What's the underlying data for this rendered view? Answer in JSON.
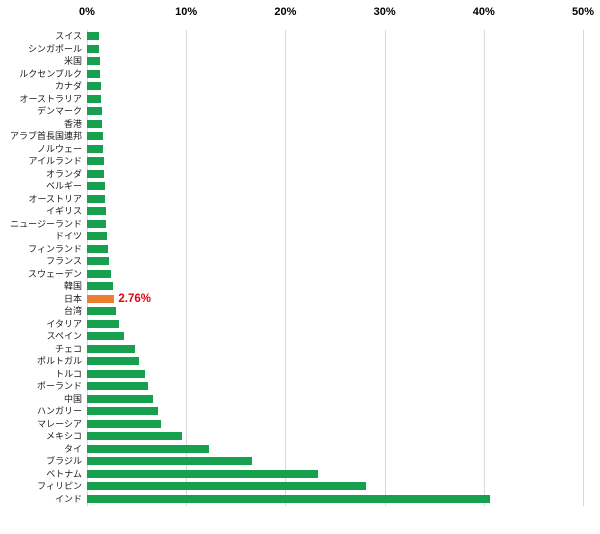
{
  "chart_data": {
    "type": "bar",
    "orientation": "horizontal",
    "title": "",
    "xlabel": "",
    "ylabel": "",
    "x_axis": {
      "min": 0,
      "max": 50,
      "ticks": [
        "0%",
        "10%",
        "20%",
        "30%",
        "40%",
        "50%"
      ],
      "tick_values": [
        0,
        10,
        20,
        30,
        40,
        50
      ]
    },
    "grid": true,
    "legend": false,
    "bar_color": "#17a14e",
    "grid_color": "#d9d9d9",
    "categories": [
      "スイス",
      "シンガポール",
      "米国",
      "ルクセンブルク",
      "カナダ",
      "オーストラリア",
      "デンマーク",
      "香港",
      "アラブ首長国連邦",
      "ノルウェー",
      "アイルランド",
      "オランダ",
      "ベルギー",
      "オーストリア",
      "イギリス",
      "ニュージーランド",
      "ドイツ",
      "フィンランド",
      "フランス",
      "スウェーデン",
      "韓国",
      "日本",
      "台湾",
      "イタリア",
      "スペイン",
      "チェコ",
      "ポルトガル",
      "トルコ",
      "ポーランド",
      "中国",
      "ハンガリー",
      "マレーシア",
      "メキシコ",
      "タイ",
      "ブラジル",
      "ベトナム",
      "フィリピン",
      "インド"
    ],
    "values": [
      1.2,
      1.2,
      1.3,
      1.3,
      1.4,
      1.4,
      1.5,
      1.5,
      1.6,
      1.6,
      1.7,
      1.7,
      1.8,
      1.8,
      1.9,
      1.9,
      2.0,
      2.1,
      2.2,
      2.4,
      2.6,
      2.76,
      2.9,
      3.2,
      3.7,
      4.8,
      5.2,
      5.8,
      6.1,
      6.7,
      7.2,
      7.5,
      9.6,
      12.3,
      16.6,
      23.3,
      28.1,
      40.6
    ],
    "highlight": {
      "category": "日本",
      "value": 2.76,
      "label": "2.76%",
      "bar_color": "#ed7d31",
      "label_color": "#e60012"
    }
  }
}
